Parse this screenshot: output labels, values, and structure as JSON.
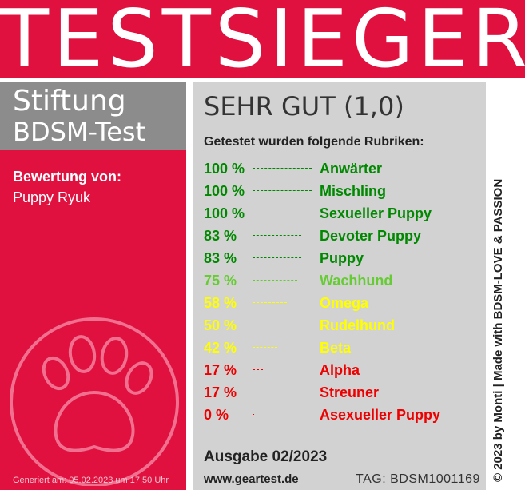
{
  "header": {
    "title": "TESTSIEGER"
  },
  "brand": {
    "line1": "Stiftung",
    "line2": "BDSM-Test"
  },
  "review": {
    "label": "Bewertung von:",
    "name": "Puppy Ryuk"
  },
  "grade": "SEHR GUT (1,0)",
  "rubrik_title": "Getestet wurden folgende Rubriken:",
  "categories": [
    {
      "percent": "100 %",
      "label": "Anwärter",
      "value": 100,
      "color": "#008800"
    },
    {
      "percent": "100 %",
      "label": "Mischling",
      "value": 100,
      "color": "#008800"
    },
    {
      "percent": "100 %",
      "label": "Sexueller Puppy",
      "value": 100,
      "color": "#008800"
    },
    {
      "percent": "83 %",
      "label": "Devoter Puppy",
      "value": 83,
      "color": "#008800"
    },
    {
      "percent": "83 %",
      "label": "Puppy",
      "value": 83,
      "color": "#008800"
    },
    {
      "percent": "75 %",
      "label": "Wachhund",
      "value": 75,
      "color": "#66cc33"
    },
    {
      "percent": "58 %",
      "label": "Omega",
      "value": 58,
      "color": "#ffff00"
    },
    {
      "percent": "50 %",
      "label": "Rudelhund",
      "value": 50,
      "color": "#ffff00"
    },
    {
      "percent": "42 %",
      "label": "Beta",
      "value": 42,
      "color": "#ffff00"
    },
    {
      "percent": "17 %",
      "label": "Alpha",
      "value": 17,
      "color": "#ee0000"
    },
    {
      "percent": "17 %",
      "label": "Streuner",
      "value": 17,
      "color": "#ee0000"
    },
    {
      "percent": "0 %",
      "label": "Asexueller Puppy",
      "value": 0,
      "color": "#ee0000"
    }
  ],
  "issue": "Ausgabe 02/2023",
  "url": "www.geartest.de",
  "tag": "TAG: BDSM1001169",
  "generated": "Generiert am: 05.02.2023 um 17:50 Uhr",
  "side_text": "© 2023 by Monti | Made with BDSM-LOVE & PASSION",
  "colors": {
    "accent": "#e0103f",
    "brand_gray": "#8c8c8c",
    "panel_gray": "#d2d2d2"
  },
  "icons": {
    "paw": "paw-icon"
  }
}
